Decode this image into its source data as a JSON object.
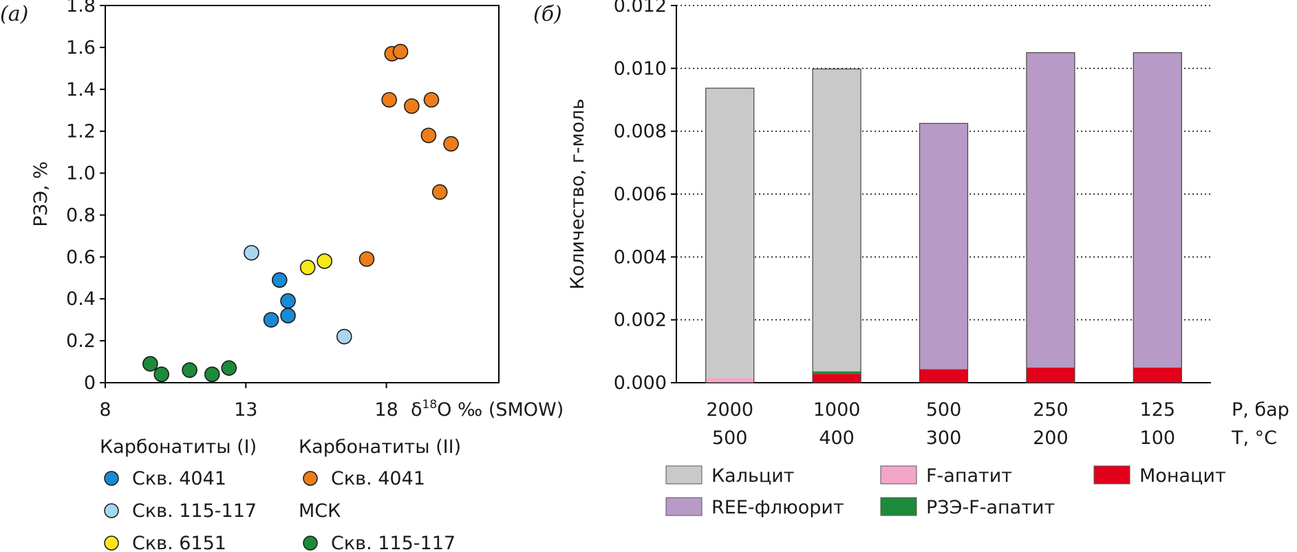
{
  "chart_data": [
    {
      "type": "scatter",
      "panel_label": "(а)",
      "ylabel": "РЗЭ, %",
      "xlabel_prefix": "δ",
      "xlabel_sup": "18",
      "xlabel_rest": "O ‰ (SMOW)",
      "xlim": [
        8,
        22
      ],
      "ylim": [
        0,
        1.8
      ],
      "x_ticks": [
        8,
        13,
        18
      ],
      "y_ticks": [
        "0",
        "0.2",
        "0.4",
        "0.6",
        "0.8",
        "1.0",
        "1.2",
        "1.4",
        "1.6",
        "1.8"
      ],
      "legend": {
        "groups": [
          {
            "title": "Карбонатиты (I)",
            "entries": [
              "Скв. 4041",
              "Скв. 115-117",
              "Скв. 6151"
            ]
          },
          {
            "title": "Карбонатиты (II)",
            "entries": [
              "Скв. 4041"
            ]
          },
          {
            "title": "МСК",
            "entries": [
              "Скв. 115-117"
            ]
          }
        ]
      },
      "series": [
        {
          "color": "#1a8ad4",
          "points": [
            [
              14.2,
              0.49
            ],
            [
              14.5,
              0.39
            ],
            [
              14.5,
              0.32
            ],
            [
              13.9,
              0.3
            ]
          ]
        },
        {
          "color": "#a9d6ef",
          "points": [
            [
              13.2,
              0.62
            ],
            [
              16.5,
              0.22
            ]
          ]
        },
        {
          "color": "#f7e81c",
          "points": [
            [
              15.2,
              0.55
            ],
            [
              15.8,
              0.58
            ]
          ]
        },
        {
          "color": "#ec7d1a",
          "points": [
            [
              18.2,
              1.57
            ],
            [
              18.5,
              1.58
            ],
            [
              18.1,
              1.35
            ],
            [
              18.9,
              1.32
            ],
            [
              19.6,
              1.35
            ],
            [
              19.5,
              1.18
            ],
            [
              20.3,
              1.14
            ],
            [
              19.9,
              0.91
            ],
            [
              17.3,
              0.59
            ]
          ]
        },
        {
          "color": "#1d8a3a",
          "points": [
            [
              9.6,
              0.09
            ],
            [
              10.0,
              0.04
            ],
            [
              11.0,
              0.06
            ],
            [
              11.8,
              0.04
            ],
            [
              12.4,
              0.07
            ]
          ]
        }
      ]
    },
    {
      "type": "bar",
      "stacked": true,
      "panel_label": "(б)",
      "ylabel": "Количество, г-моль",
      "ylim": [
        0,
        0.012
      ],
      "y_ticks": [
        "0.000",
        "0.002",
        "0.004",
        "0.006",
        "0.008",
        "0.010",
        "0.012"
      ],
      "grid": "horizontal dotted",
      "categories_p": [
        "2000",
        "1000",
        "500",
        "250",
        "125"
      ],
      "categories_t": [
        "500",
        "400",
        "300",
        "200",
        "100"
      ],
      "p_label": "P, бар",
      "t_label": "T, °C",
      "series": [
        {
          "name": "Монацит",
          "color": "#e2001a",
          "values": [
            0,
            0.00028,
            0.00043,
            0.00048,
            0.00048
          ]
        },
        {
          "name": "РЗЭ-F-апатит",
          "color": "#1d8a3a",
          "values": [
            0,
            8e-05,
            0,
            0,
            0
          ]
        },
        {
          "name": "F-апатит",
          "color": "#f4a6c8",
          "values": [
            0.00015,
            0,
            0,
            0,
            0
          ]
        },
        {
          "name": "Кальцит",
          "color": "#c9c9c9",
          "values": [
            0.00922,
            0.00962,
            0,
            0,
            0
          ]
        },
        {
          "name": "REE-флюорит",
          "color": "#b79ac6",
          "values": [
            0,
            0,
            0.00782,
            0.01002,
            0.01002
          ]
        }
      ],
      "legend": [
        "Кальцит",
        "F-апатит",
        "Монацит",
        "REE-флюорит",
        "РЗЭ-F-апатит"
      ]
    }
  ]
}
